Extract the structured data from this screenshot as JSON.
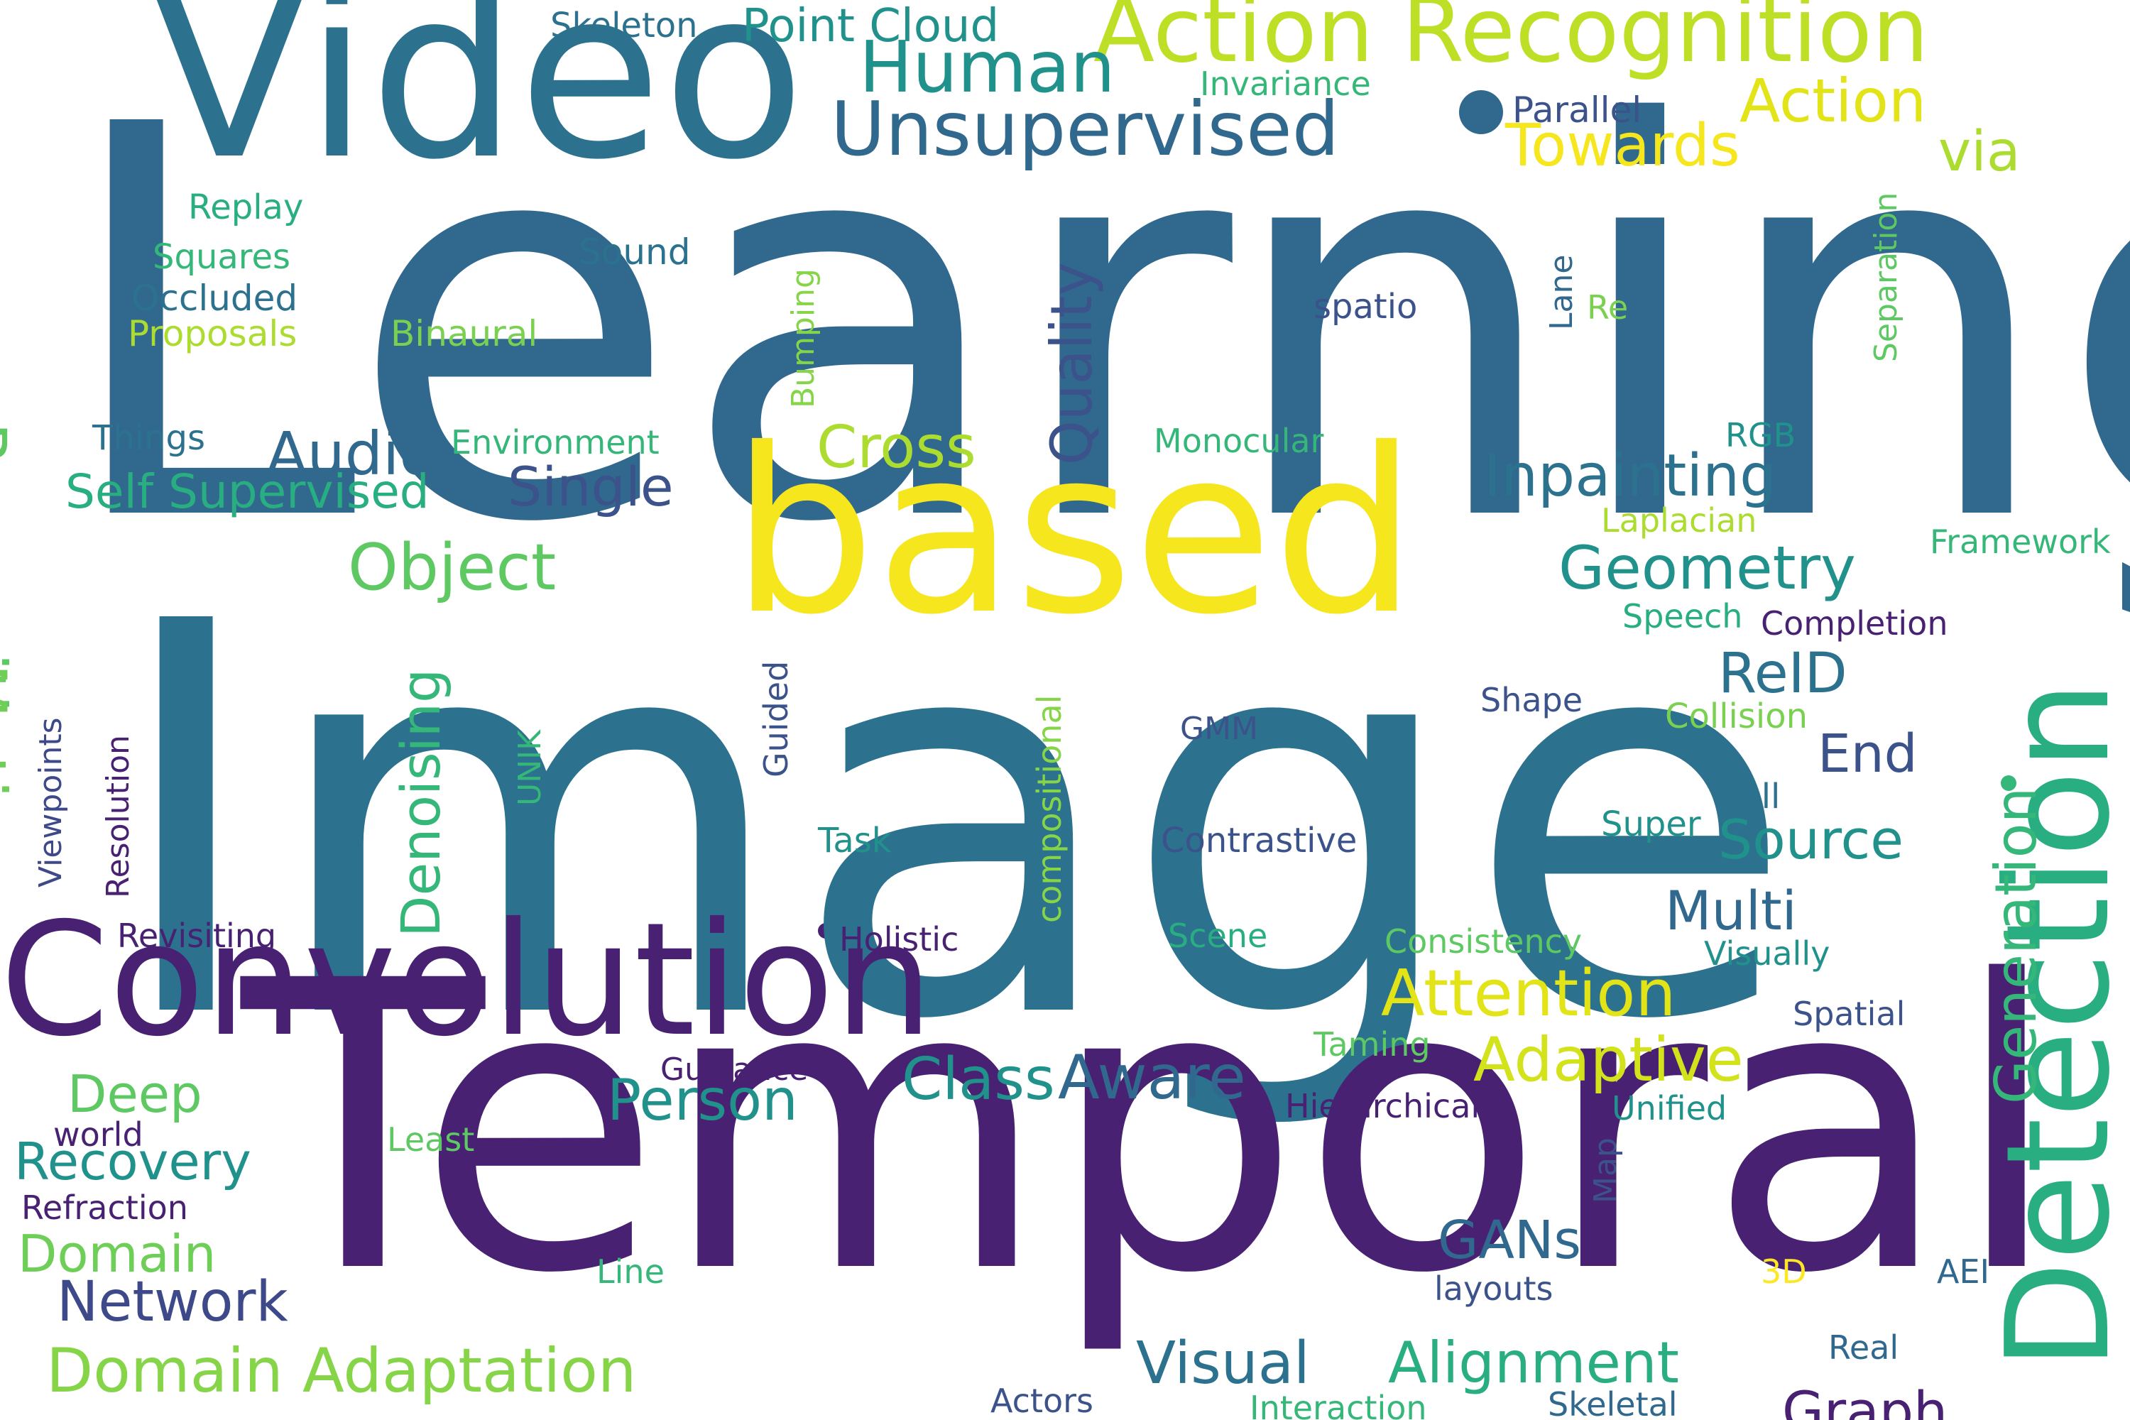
{
  "palette": {
    "dark_purple": "#482173",
    "indigo": "#3b528b",
    "blue": "#2c728e",
    "teal": "#21918c",
    "green_teal": "#28ae80",
    "green": "#5ec962",
    "lime": "#addc30",
    "yellow": "#f5e61e"
  },
  "words": [
    {
      "text": "Learning",
      "color": "#31688e"
    },
    {
      "text": "Image",
      "color": "#2c728e"
    },
    {
      "text": "Temporal",
      "color": "#482173"
    },
    {
      "text": "based",
      "color": "#f5e61e"
    },
    {
      "text": "Video",
      "color": "#2c728e"
    },
    {
      "text": "Convolution",
      "color": "#482173"
    },
    {
      "text": "Detection",
      "color": "#28ae80"
    },
    {
      "text": "Action Recognition",
      "color": "#bddf26"
    },
    {
      "text": "Unsupervised",
      "color": "#31688e"
    },
    {
      "text": "Human",
      "color": "#21918c"
    },
    {
      "text": "Action",
      "color": "#e2e418"
    },
    {
      "text": "Towards",
      "color": "#f5e61e"
    },
    {
      "text": "via",
      "color": "#addc30"
    },
    {
      "text": "Point Cloud",
      "color": "#21918c"
    },
    {
      "text": "Skeleton",
      "color": "#2c728e"
    },
    {
      "text": "Invariance",
      "color": "#35b779"
    },
    {
      "text": "Parallel",
      "color": "#3b528b"
    },
    {
      "text": "Recognition",
      "color": "#5ec962"
    },
    {
      "text": "Motion",
      "color": "#6ece58"
    },
    {
      "text": "Replay",
      "color": "#28ae80"
    },
    {
      "text": "Squares",
      "color": "#35b779"
    },
    {
      "text": "Occluded",
      "color": "#2c728e"
    },
    {
      "text": "Proposals",
      "color": "#addc30"
    },
    {
      "text": "Binaural",
      "color": "#7ad151"
    },
    {
      "text": "Sound",
      "color": "#2c728e"
    },
    {
      "text": "Bumping",
      "color": "#86d549"
    },
    {
      "text": "Quality",
      "color": "#3b528b"
    },
    {
      "text": "spatio",
      "color": "#3b528b"
    },
    {
      "text": "Lane",
      "color": "#31688e"
    },
    {
      "text": "Re",
      "color": "#7ad151"
    },
    {
      "text": "Separation",
      "color": "#5ec962"
    },
    {
      "text": "Things",
      "color": "#2c728e"
    },
    {
      "text": "Environment",
      "color": "#35b779"
    },
    {
      "text": "Audio",
      "color": "#31688e"
    },
    {
      "text": "Cross",
      "color": "#addc30"
    },
    {
      "text": "Monocular",
      "color": "#35b779"
    },
    {
      "text": "RGB",
      "color": "#21918c"
    },
    {
      "text": "Inpainting",
      "color": "#2c728e"
    },
    {
      "text": "Self Supervised",
      "color": "#28ae80"
    },
    {
      "text": "Single",
      "color": "#3b528b"
    },
    {
      "text": "Laplacian",
      "color": "#addc30"
    },
    {
      "text": "Framework",
      "color": "#35b779"
    },
    {
      "text": "Object",
      "color": "#5ec962"
    },
    {
      "text": "Geometry",
      "color": "#21918c"
    },
    {
      "text": "Speech",
      "color": "#28ae80"
    },
    {
      "text": "Completion",
      "color": "#482173"
    },
    {
      "text": "ReID",
      "color": "#2c728e"
    },
    {
      "text": "Generation",
      "color": "#35b779"
    },
    {
      "text": "Denoising",
      "color": "#35b779"
    },
    {
      "text": "Guided",
      "color": "#3b528b"
    },
    {
      "text": "compositional",
      "color": "#86d549"
    },
    {
      "text": "GMM",
      "color": "#3b528b"
    },
    {
      "text": "Shape",
      "color": "#3b528b"
    },
    {
      "text": "Collision",
      "color": "#7ad151"
    },
    {
      "text": "End",
      "color": "#3b528b"
    },
    {
      "text": "Viewpoints",
      "color": "#3e4989"
    },
    {
      "text": "Resolution",
      "color": "#482173"
    },
    {
      "text": "UNIK",
      "color": "#35b779"
    },
    {
      "text": "Task",
      "color": "#21918c"
    },
    {
      "text": "Contrastive",
      "color": "#3b528b"
    },
    {
      "text": "Tell",
      "color": "#2c728e"
    },
    {
      "text": "Super",
      "color": "#21918c"
    },
    {
      "text": "Source",
      "color": "#21918c"
    },
    {
      "text": "Multi",
      "color": "#31688e"
    },
    {
      "text": "Revisiting",
      "color": "#482173"
    },
    {
      "text": "Holistic",
      "color": "#482173"
    },
    {
      "text": "Scene",
      "color": "#28ae80"
    },
    {
      "text": "Consistency",
      "color": "#5ec962"
    },
    {
      "text": "Visually",
      "color": "#21918c"
    },
    {
      "text": "Attention",
      "color": "#e2e418"
    },
    {
      "text": "Spatial",
      "color": "#3b528b"
    },
    {
      "text": "Adaptive",
      "color": "#d2e21b"
    },
    {
      "text": "Taming",
      "color": "#5ec962"
    },
    {
      "text": "Guidance",
      "color": "#482173"
    },
    {
      "text": "Class",
      "color": "#21918c"
    },
    {
      "text": "Aware",
      "color": "#31688e"
    },
    {
      "text": "Person",
      "color": "#21918c"
    },
    {
      "text": "Deep",
      "color": "#5ec962"
    },
    {
      "text": "Hierarchical",
      "color": "#482173"
    },
    {
      "text": "Unified",
      "color": "#21918c"
    },
    {
      "text": "world",
      "color": "#482173"
    },
    {
      "text": "Least",
      "color": "#5ec962"
    },
    {
      "text": "Recovery",
      "color": "#21918c"
    },
    {
      "text": "Refraction",
      "color": "#482173"
    },
    {
      "text": "Map",
      "color": "#3b528b"
    },
    {
      "text": "Domain",
      "color": "#6ece58"
    },
    {
      "text": "GANs",
      "color": "#31688e"
    },
    {
      "text": "Network",
      "color": "#3e4989"
    },
    {
      "text": "Line",
      "color": "#35b779"
    },
    {
      "text": "layouts",
      "color": "#3b528b"
    },
    {
      "text": "3D",
      "color": "#fde725"
    },
    {
      "text": "AEI",
      "color": "#31688e"
    },
    {
      "text": "Domain Adaptation",
      "color": "#86d549"
    },
    {
      "text": "Visual",
      "color": "#2c728e"
    },
    {
      "text": "Alignment",
      "color": "#28ae80"
    },
    {
      "text": "Graph",
      "color": "#482173"
    },
    {
      "text": "Real",
      "color": "#31688e"
    },
    {
      "text": "Actors",
      "color": "#3b528b"
    },
    {
      "text": "Interaction",
      "color": "#35b779"
    },
    {
      "text": "Skeletal",
      "color": "#31688e"
    }
  ]
}
